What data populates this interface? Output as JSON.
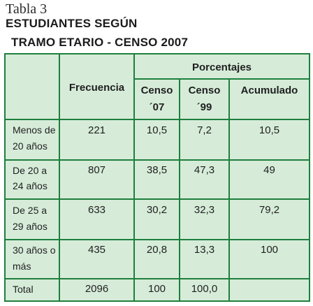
{
  "caption": {
    "tabla_label": "Tabla 3",
    "title_line1": "ESTUDIANTES SEGÚN",
    "title_line2": "TRAMO ETARIO - CENSO 2007"
  },
  "table": {
    "headers": {
      "frecuencia": "Frecuencia",
      "porcentajes": "Porcentajes",
      "censo07_line1": "Censo",
      "censo07_line2": "´07",
      "censo99_line1": "Censo",
      "censo99_line2": "´99",
      "acumulado": "Acumulado"
    },
    "rows": [
      {
        "label_line1": "Menos de",
        "label_line2": "20 años",
        "frecuencia": "221",
        "censo07": "10,5",
        "censo99": "7,2",
        "acumulado": "10,5"
      },
      {
        "label_line1": "De 20 a",
        "label_line2": "24 años",
        "frecuencia": "807",
        "censo07": "38,5",
        "censo99": "47,3",
        "acumulado": "49"
      },
      {
        "label_line1": "De 25 a",
        "label_line2": "29 años",
        "frecuencia": "633",
        "censo07": "30,2",
        "censo99": "32,3",
        "acumulado": "79,2"
      },
      {
        "label_line1": "30 años o",
        "label_line2": "más",
        "frecuencia": "435",
        "censo07": "20,8",
        "censo99": "13,3",
        "acumulado": "100"
      },
      {
        "label_line1": "Total",
        "label_line2": "",
        "frecuencia": "2096",
        "censo07": "100",
        "censo99": "100,0",
        "acumulado": ""
      }
    ],
    "colors": {
      "border": "#1e7f3c",
      "fill": "#d6ecd9"
    }
  }
}
